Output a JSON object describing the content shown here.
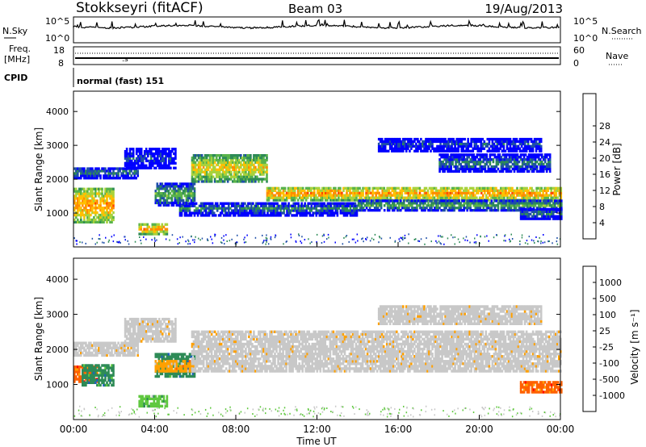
{
  "header": {
    "station": "Stokkseyri (fitACF)",
    "beam": "Beam 03",
    "date": "19/Aug/2013"
  },
  "noise_panel": {
    "left_label": "N.Sky",
    "right_label": "N.Search",
    "left_ticks": [
      "10^5",
      "10^0"
    ],
    "right_ticks": [
      "10^5",
      "10^0"
    ]
  },
  "freq_panel": {
    "left_label_1": "Freq.",
    "left_label_2": "[MHz]",
    "left_ticks": [
      "18",
      "8"
    ],
    "right_label": "Nave",
    "right_ticks": [
      "60",
      "0"
    ]
  },
  "cpid_panel": {
    "label": "CPID",
    "text": "normal (fast) 151"
  },
  "x_axis": {
    "title": "Time UT",
    "ticks": [
      "00:00",
      "04:00",
      "08:00",
      "12:00",
      "16:00",
      "20:00",
      "00:00"
    ]
  },
  "colors": {
    "power": [
      "#0000ff",
      "#1f4fa8",
      "#2e8b57",
      "#59b34a",
      "#a8d23c",
      "#ffc000",
      "#ff8c00",
      "#ff4500",
      "#e00000"
    ],
    "velocity": [
      "#ff0000",
      "#ff6000",
      "#ffa000",
      "#c8c8c8",
      "#c8c8c8",
      "#60c840",
      "#2e8b57",
      "#1f5fbf",
      "#0000c0"
    ]
  },
  "chart_data": [
    {
      "type": "heatmap",
      "name": "power",
      "ylabel": "Slant Range [km]",
      "yticks": [
        1000,
        2000,
        3000,
        4000
      ],
      "ylim": [
        0,
        4600
      ],
      "xlim_hours": [
        0,
        24
      ],
      "colorbar_label": "Power [dB]",
      "colorbar_ticks": [
        "4",
        "8",
        "12",
        "16",
        "20",
        "24",
        "28"
      ],
      "bands": [
        {
          "t0": 0.0,
          "t1": 3.2,
          "r0": 2000,
          "r1": 2350,
          "level": 2
        },
        {
          "t0": 0.0,
          "t1": 2.0,
          "r0": 700,
          "r1": 1700,
          "level": 6
        },
        {
          "t0": 2.5,
          "t1": 5.0,
          "r0": 2300,
          "r1": 2900,
          "level": 1
        },
        {
          "t0": 4.0,
          "t1": 6.0,
          "r0": 1200,
          "r1": 1850,
          "level": 3
        },
        {
          "t0": 3.2,
          "t1": 4.6,
          "r0": 350,
          "r1": 650,
          "level": 6
        },
        {
          "t0": 5.8,
          "t1": 9.5,
          "r0": 1900,
          "r1": 2700,
          "level": 5
        },
        {
          "t0": 9.5,
          "t1": 24.0,
          "r0": 1350,
          "r1": 1750,
          "level": 6
        },
        {
          "t0": 5.2,
          "t1": 14.0,
          "r0": 900,
          "r1": 1300,
          "level": 2
        },
        {
          "t0": 14.0,
          "t1": 24.0,
          "r0": 1050,
          "r1": 1350,
          "level": 3
        },
        {
          "t0": 15.0,
          "t1": 23.0,
          "r0": 2800,
          "r1": 3200,
          "level": 1
        },
        {
          "t0": 18.0,
          "t1": 23.5,
          "r0": 2200,
          "r1": 2700,
          "level": 2
        },
        {
          "t0": 22.0,
          "t1": 24.0,
          "r0": 800,
          "r1": 1100,
          "level": 2
        }
      ]
    },
    {
      "type": "heatmap",
      "name": "velocity",
      "ylabel": "Slant Range [km]",
      "yticks": [
        1000,
        2000,
        3000,
        4000
      ],
      "ylim": [
        0,
        4600
      ],
      "xlim_hours": [
        0,
        24
      ],
      "colorbar_label": "Velocity [m s⁻¹]",
      "colorbar_ticks": [
        "-1000",
        "-500",
        "-100",
        "-25",
        "25",
        "100",
        "500",
        "1000"
      ],
      "bands": [
        {
          "t0": 0.0,
          "t1": 3.2,
          "r0": 1800,
          "r1": 2200,
          "level": 3
        },
        {
          "t0": 0.0,
          "t1": 1.2,
          "r0": 1050,
          "r1": 1500,
          "level": 1
        },
        {
          "t0": 0.4,
          "t1": 2.0,
          "r0": 950,
          "r1": 1550,
          "level": 6
        },
        {
          "t0": 2.5,
          "t1": 5.0,
          "r0": 2200,
          "r1": 2850,
          "level": 3
        },
        {
          "t0": 4.0,
          "t1": 6.0,
          "r0": 1200,
          "r1": 1850,
          "level": 6
        },
        {
          "t0": 4.0,
          "t1": 6.0,
          "r0": 1350,
          "r1": 1700,
          "level": 2
        },
        {
          "t0": 3.2,
          "t1": 4.6,
          "r0": 350,
          "r1": 650,
          "level": 5
        },
        {
          "t0": 5.8,
          "t1": 24.0,
          "r0": 1350,
          "r1": 2500,
          "level": 3
        },
        {
          "t0": 15.0,
          "t1": 23.0,
          "r0": 2700,
          "r1": 3200,
          "level": 3
        },
        {
          "t0": 22.0,
          "t1": 24.0,
          "r0": 750,
          "r1": 1050,
          "level": 1
        }
      ]
    }
  ]
}
